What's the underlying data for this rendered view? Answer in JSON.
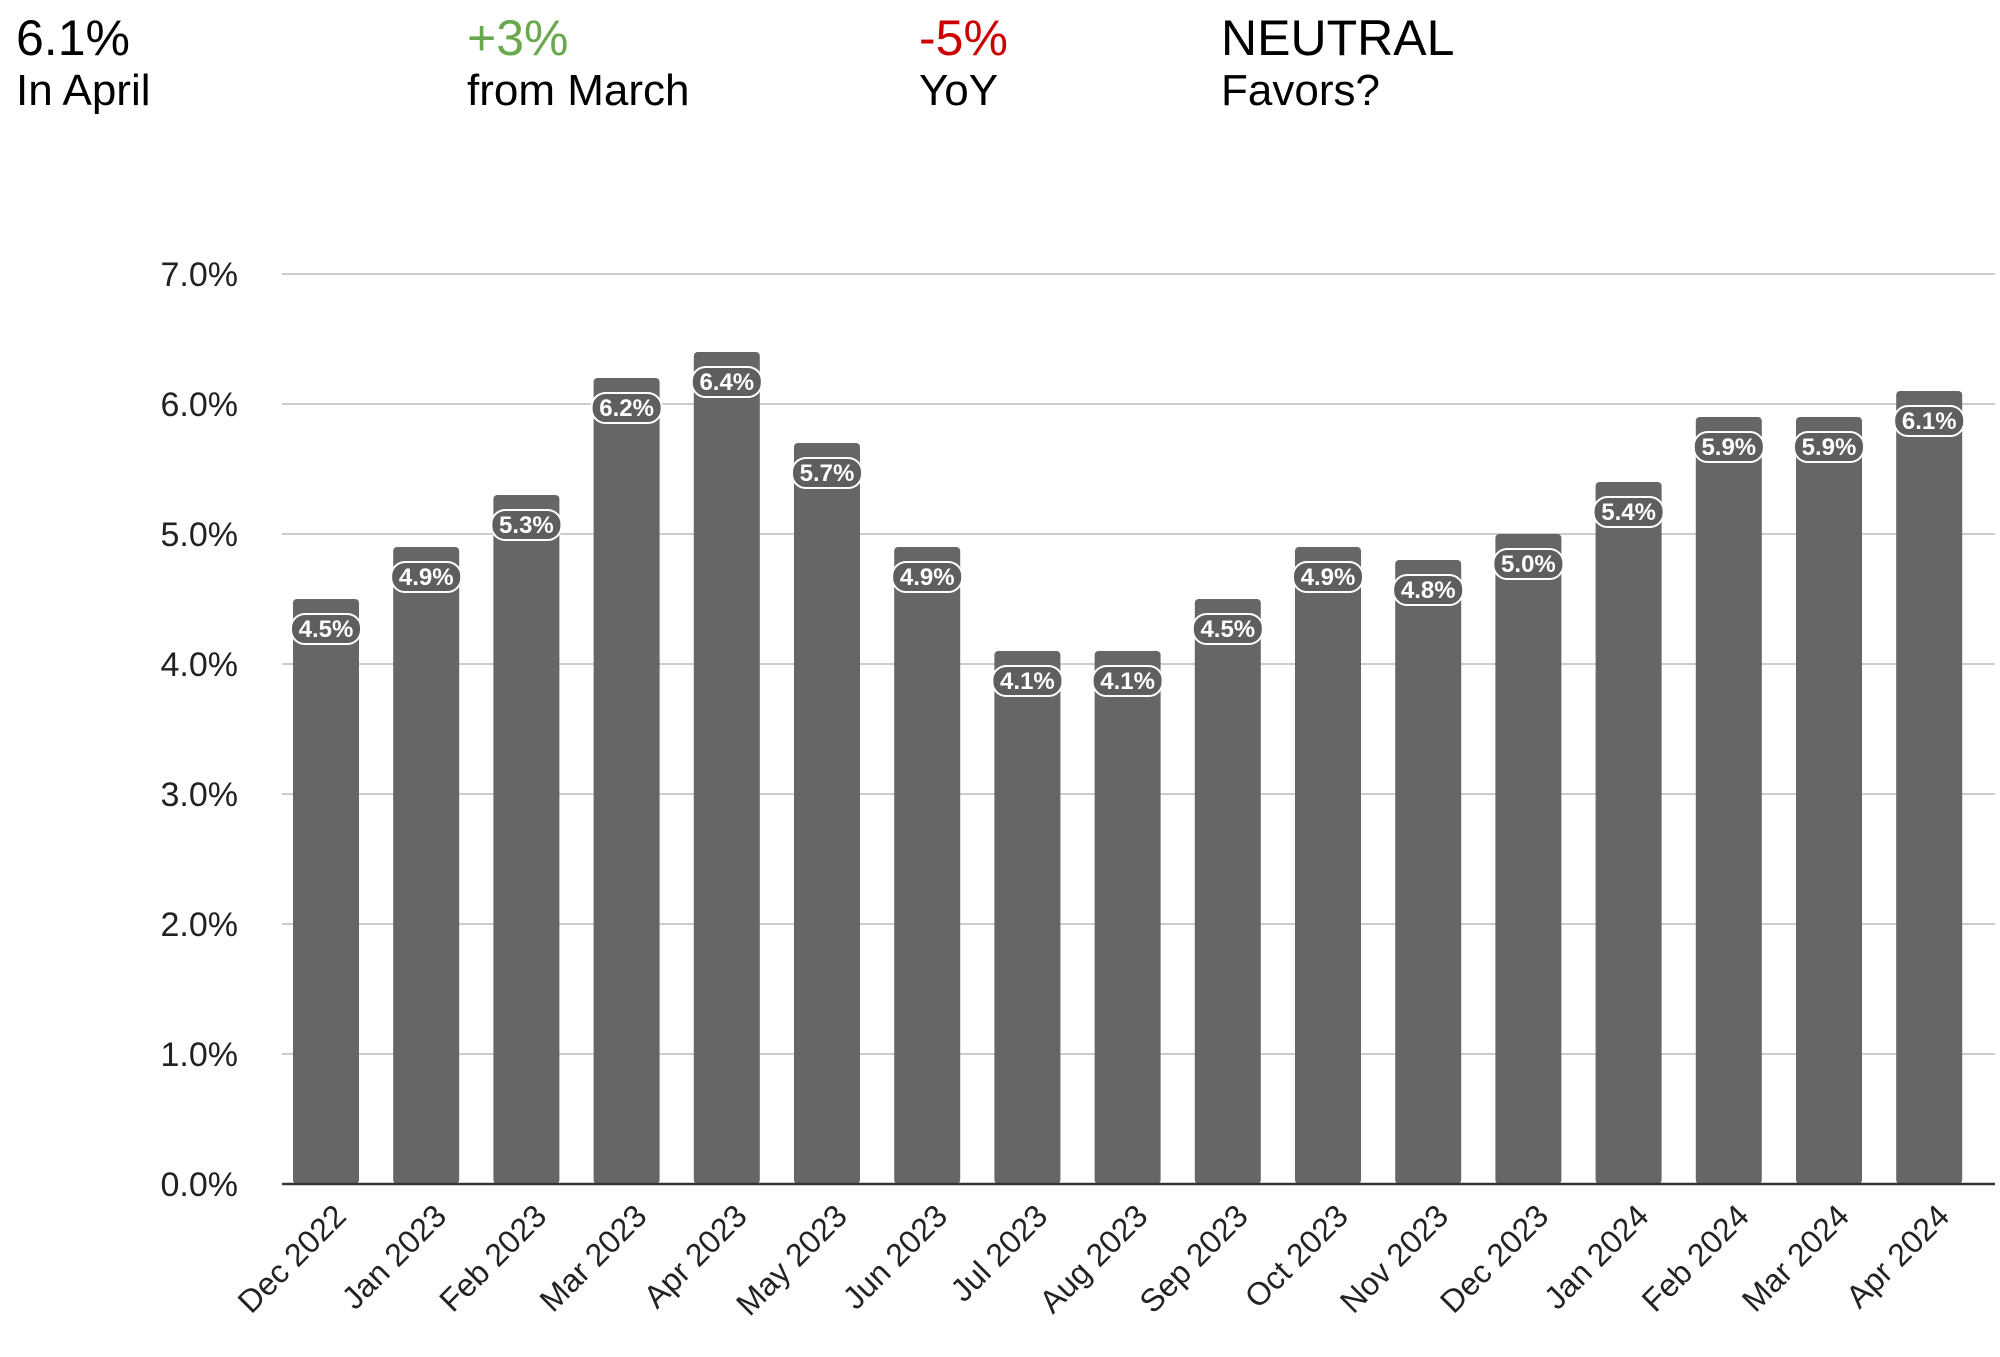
{
  "kpis": [
    {
      "value": "6.1%",
      "label": "In April",
      "color": "#000000"
    },
    {
      "value": "+3%",
      "label": "from March",
      "color": "#6aa84f"
    },
    {
      "value": "-5%",
      "label": "YoY",
      "color": "#cc0000"
    },
    {
      "value": "NEUTRAL",
      "label": "Favors?",
      "color": "#000000"
    }
  ],
  "chart_data": {
    "type": "bar",
    "title": "",
    "xlabel": "",
    "ylabel": "",
    "categories": [
      "Dec 2022",
      "Jan 2023",
      "Feb 2023",
      "Mar 2023",
      "Apr 2023",
      "May 2023",
      "Jun 2023",
      "Jul 2023",
      "Aug 2023",
      "Sep 2023",
      "Oct 2023",
      "Nov 2023",
      "Dec 2023",
      "Jan 2024",
      "Feb 2024",
      "Mar 2024",
      "Apr 2024"
    ],
    "values": [
      4.5,
      4.9,
      5.3,
      6.2,
      6.4,
      5.7,
      4.9,
      4.1,
      4.1,
      4.5,
      4.9,
      4.8,
      5.0,
      5.4,
      5.9,
      5.9,
      6.1
    ],
    "data_labels": [
      "4.5%",
      "4.9%",
      "5.3%",
      "6.2%",
      "6.4%",
      "5.7%",
      "4.9%",
      "4.1%",
      "4.1%",
      "4.5%",
      "4.9%",
      "4.8%",
      "5.0%",
      "5.4%",
      "5.9%",
      "5.9%",
      "6.1%"
    ],
    "y_ticks": [
      "0.0%",
      "1.0%",
      "2.0%",
      "3.0%",
      "4.0%",
      "5.0%",
      "6.0%",
      "7.0%"
    ],
    "ylim": [
      0,
      7
    ],
    "grid": true,
    "legend": "none",
    "bar_color": "#666666",
    "grid_color": "#cccccc",
    "axis_color": "#333333"
  }
}
